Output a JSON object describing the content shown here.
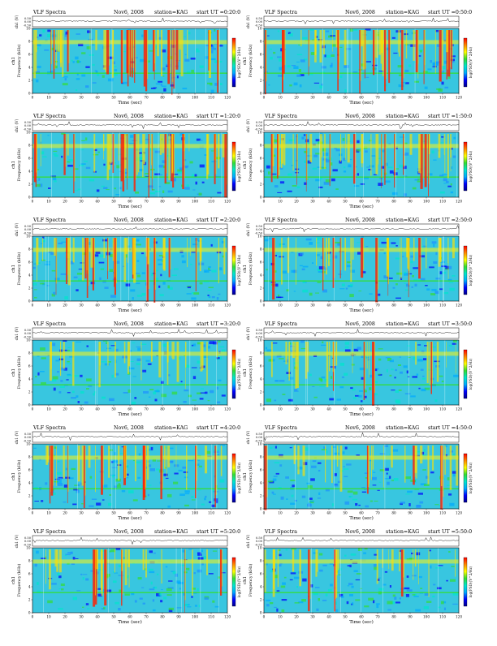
{
  "figure": {
    "panel_title": "VLF Spectra",
    "date": "Nov6, 2008",
    "station": "station=KAG",
    "start_prefix": "start UT =",
    "channel_label": "ch1",
    "waveform_label": "ch1 (V)",
    "freq_label": "Frequency (kHz)",
    "time_label": "Time (sec)",
    "colorbar_label": "log(PSD)(V^2/Hz)"
  },
  "chart_data": [
    {
      "type": "heatmap",
      "title": "VLF Spectra  Nov6, 2008  station=KAG  start UT =0:20:0",
      "start_ut": "0:20:0",
      "xlabel": "Time (sec)",
      "ylabel": "Frequency (kHz)",
      "xlim": [
        0,
        120
      ],
      "ylim": [
        0,
        10
      ],
      "xticks": [
        0,
        10,
        20,
        30,
        40,
        50,
        60,
        70,
        80,
        90,
        100,
        110,
        120
      ],
      "yticks": [
        0,
        2,
        4,
        6,
        8,
        10
      ],
      "waveform_ticks": [
        "0.50",
        "0.00",
        "-0.50"
      ],
      "activity": "high",
      "colorscale": [
        "#00008b",
        "#0000ff",
        "#00aaff",
        "#00e5cc",
        "#33dd33",
        "#ffff00",
        "#ff8800",
        "#ff0000"
      ]
    },
    {
      "type": "heatmap",
      "title": "VLF Spectra  Nov6, 2008  station=KAG  start UT =0:50:0",
      "start_ut": "0:50:0",
      "xlabel": "Time (sec)",
      "ylabel": "Frequency (kHz)",
      "xlim": [
        0,
        120
      ],
      "ylim": [
        0,
        10
      ],
      "xticks": [
        0,
        10,
        20,
        30,
        40,
        50,
        60,
        70,
        80,
        90,
        100,
        110,
        120
      ],
      "yticks": [
        0,
        2,
        4,
        6,
        8,
        10
      ],
      "waveform_ticks": [
        "0.50",
        "0.00",
        "-0.50"
      ],
      "activity": "high",
      "colorscale": [
        "#00008b",
        "#0000ff",
        "#00aaff",
        "#00e5cc",
        "#33dd33",
        "#ffff00",
        "#ff8800",
        "#ff0000"
      ]
    },
    {
      "type": "heatmap",
      "title": "VLF Spectra  Nov6, 2008  station=KAG  start UT =1:20:0",
      "start_ut": "1:20:0",
      "xlabel": "Time (sec)",
      "ylabel": "Frequency (kHz)",
      "xlim": [
        0,
        120
      ],
      "ylim": [
        0,
        10
      ],
      "xticks": [
        0,
        10,
        20,
        30,
        40,
        50,
        60,
        70,
        80,
        90,
        100,
        110,
        120
      ],
      "yticks": [
        0,
        2,
        4,
        6,
        8,
        10
      ],
      "waveform_ticks": [
        "0.50",
        "0.00",
        "-0.50"
      ],
      "activity": "high",
      "colorscale": [
        "#00008b",
        "#0000ff",
        "#00aaff",
        "#00e5cc",
        "#33dd33",
        "#ffff00",
        "#ff8800",
        "#ff0000"
      ]
    },
    {
      "type": "heatmap",
      "title": "VLF Spectra  Nov6, 2008  station=KAG  start UT =1:50:0",
      "start_ut": "1:50:0",
      "xlabel": "Time (sec)",
      "ylabel": "Frequency (kHz)",
      "xlim": [
        0,
        120
      ],
      "ylim": [
        0,
        10
      ],
      "xticks": [
        0,
        10,
        20,
        30,
        40,
        50,
        60,
        70,
        80,
        90,
        100,
        110,
        120
      ],
      "yticks": [
        0,
        2,
        4,
        6,
        8,
        10
      ],
      "waveform_ticks": [
        "0.50",
        "0.00",
        "-0.50"
      ],
      "activity": "high",
      "colorscale": [
        "#00008b",
        "#0000ff",
        "#00aaff",
        "#00e5cc",
        "#33dd33",
        "#ffff00",
        "#ff8800",
        "#ff0000"
      ]
    },
    {
      "type": "heatmap",
      "title": "VLF Spectra  Nov6, 2008  station=KAG  start UT =2:20:0",
      "start_ut": "2:20:0",
      "xlabel": "Time (sec)",
      "ylabel": "Frequency (kHz)",
      "xlim": [
        0,
        120
      ],
      "ylim": [
        0,
        10
      ],
      "xticks": [
        0,
        10,
        20,
        30,
        40,
        50,
        60,
        70,
        80,
        90,
        100,
        110,
        120
      ],
      "yticks": [
        0,
        2,
        4,
        6,
        8,
        10
      ],
      "waveform_ticks": [
        "0.50",
        "0.00",
        "-0.50"
      ],
      "activity": "high",
      "colorscale": [
        "#00008b",
        "#0000ff",
        "#00aaff",
        "#00e5cc",
        "#33dd33",
        "#ffff00",
        "#ff8800",
        "#ff0000"
      ]
    },
    {
      "type": "heatmap",
      "title": "VLF Spectra  Nov6, 2008  station=KAG  start UT =2:50:0",
      "start_ut": "2:50:0",
      "xlabel": "Time (sec)",
      "ylabel": "Frequency (kHz)",
      "xlim": [
        0,
        120
      ],
      "ylim": [
        0,
        10
      ],
      "xticks": [
        0,
        10,
        20,
        30,
        40,
        50,
        60,
        70,
        80,
        90,
        100,
        110,
        120
      ],
      "yticks": [
        0,
        2,
        4,
        6,
        8,
        10
      ],
      "waveform_ticks": [
        "0.50",
        "0.00",
        "-0.50"
      ],
      "activity": "medium",
      "colorscale": [
        "#00008b",
        "#0000ff",
        "#00aaff",
        "#00e5cc",
        "#33dd33",
        "#ffff00",
        "#ff8800",
        "#ff0000"
      ]
    },
    {
      "type": "heatmap",
      "title": "VLF Spectra  Nov6, 2008  station=KAG  start UT =3:20:0",
      "start_ut": "3:20:0",
      "xlabel": "Time (sec)",
      "ylabel": "Frequency (kHz)",
      "xlim": [
        0,
        120
      ],
      "ylim": [
        0,
        10
      ],
      "xticks": [
        0,
        10,
        20,
        30,
        40,
        50,
        60,
        70,
        80,
        90,
        100,
        110,
        120
      ],
      "yticks": [
        0,
        2,
        4,
        6,
        8,
        10
      ],
      "waveform_ticks": [
        "0.50",
        "0.00",
        "-0.50"
      ],
      "activity": "low",
      "colorscale": [
        "#00008b",
        "#0000ff",
        "#00aaff",
        "#00e5cc",
        "#33dd33",
        "#ffff00",
        "#ff8800",
        "#ff0000"
      ]
    },
    {
      "type": "heatmap",
      "title": "VLF Spectra  Nov6, 2008  station=KAG  start UT =3:50:0",
      "start_ut": "3:50:0",
      "xlabel": "Time (sec)",
      "ylabel": "Frequency (kHz)",
      "xlim": [
        0,
        120
      ],
      "ylim": [
        0,
        10
      ],
      "xticks": [
        0,
        10,
        20,
        30,
        40,
        50,
        60,
        70,
        80,
        90,
        100,
        110,
        120
      ],
      "yticks": [
        0,
        2,
        4,
        6,
        8,
        10
      ],
      "waveform_ticks": [
        "0.50",
        "0.00",
        "-0.50"
      ],
      "activity": "low",
      "colorscale": [
        "#00008b",
        "#0000ff",
        "#00aaff",
        "#00e5cc",
        "#33dd33",
        "#ffff00",
        "#ff8800",
        "#ff0000"
      ]
    },
    {
      "type": "heatmap",
      "title": "VLF Spectra  Nov6, 2008  station=KAG  start UT =4:20:0",
      "start_ut": "4:20:0",
      "xlabel": "Time (sec)",
      "ylabel": "Frequency (kHz)",
      "xlim": [
        0,
        120
      ],
      "ylim": [
        0,
        10
      ],
      "xticks": [
        0,
        10,
        20,
        30,
        40,
        50,
        60,
        70,
        80,
        90,
        100,
        110,
        120
      ],
      "yticks": [
        0,
        2,
        4,
        6,
        8,
        10
      ],
      "waveform_ticks": [
        "0.50",
        "0.00",
        "-0.50"
      ],
      "activity": "medium",
      "colorscale": [
        "#00008b",
        "#0000ff",
        "#00aaff",
        "#00e5cc",
        "#33dd33",
        "#ffff00",
        "#ff8800",
        "#ff0000"
      ]
    },
    {
      "type": "heatmap",
      "title": "VLF Spectra  Nov6, 2008  station=KAG  start UT =4:50:0",
      "start_ut": "4:50:0",
      "xlabel": "Time (sec)",
      "ylabel": "Frequency (kHz)",
      "xlim": [
        0,
        120
      ],
      "ylim": [
        0,
        10
      ],
      "xticks": [
        0,
        10,
        20,
        30,
        40,
        50,
        60,
        70,
        80,
        90,
        100,
        110,
        120
      ],
      "yticks": [
        0,
        2,
        4,
        6,
        8,
        10
      ],
      "waveform_ticks": [
        "0.50",
        "0.00",
        "-0.50"
      ],
      "activity": "low",
      "colorscale": [
        "#00008b",
        "#0000ff",
        "#00aaff",
        "#00e5cc",
        "#33dd33",
        "#ffff00",
        "#ff8800",
        "#ff0000"
      ]
    },
    {
      "type": "heatmap",
      "title": "VLF Spectra  Nov6, 2008  station=KAG  start UT =5:20:0",
      "start_ut": "5:20:0",
      "xlabel": "Time (sec)",
      "ylabel": "Frequency (kHz)",
      "xlim": [
        0,
        120
      ],
      "ylim": [
        0,
        10
      ],
      "xticks": [
        0,
        10,
        20,
        30,
        40,
        50,
        60,
        70,
        80,
        90,
        100,
        110,
        120
      ],
      "yticks": [
        0,
        2,
        4,
        6,
        8,
        10
      ],
      "waveform_ticks": [
        "0.50",
        "0.00",
        "-0.50"
      ],
      "activity": "low",
      "colorscale": [
        "#00008b",
        "#0000ff",
        "#00aaff",
        "#00e5cc",
        "#33dd33",
        "#ffff00",
        "#ff8800",
        "#ff0000"
      ]
    },
    {
      "type": "heatmap",
      "title": "VLF Spectra  Nov6, 2008  station=KAG  start UT =5:50:0",
      "start_ut": "5:50:0",
      "xlabel": "Time (sec)",
      "ylabel": "Frequency (kHz)",
      "xlim": [
        0,
        120
      ],
      "ylim": [
        0,
        10
      ],
      "xticks": [
        0,
        10,
        20,
        30,
        40,
        50,
        60,
        70,
        80,
        90,
        100,
        110,
        120
      ],
      "yticks": [
        0,
        2,
        4,
        6,
        8,
        10
      ],
      "waveform_ticks": [
        "0.50",
        "0.00",
        "-0.50"
      ],
      "activity": "low",
      "colorscale": [
        "#00008b",
        "#0000ff",
        "#00aaff",
        "#00e5cc",
        "#33dd33",
        "#ffff00",
        "#ff8800",
        "#ff0000"
      ]
    }
  ]
}
